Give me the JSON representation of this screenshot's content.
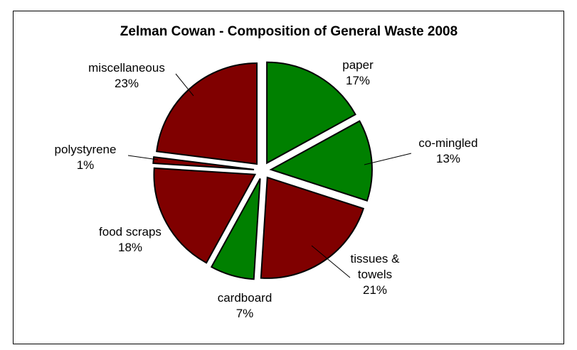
{
  "chart_data": {
    "type": "pie",
    "title": "Zelman Cowan - Composition of General Waste 2008",
    "slices": [
      {
        "label": "paper",
        "value_label": "17%",
        "value": 17,
        "color": "#008000"
      },
      {
        "label": "co-mingled",
        "value_label": "13%",
        "value": 13,
        "color": "#008000"
      },
      {
        "label": "tissues & towels",
        "label_lines": [
          "tissues &",
          "towels"
        ],
        "value_label": "21%",
        "value": 21,
        "color": "#800000"
      },
      {
        "label": "cardboard",
        "value_label": "7%",
        "value": 7,
        "color": "#008000"
      },
      {
        "label": "food scraps",
        "value_label": "18%",
        "value": 18,
        "color": "#800000"
      },
      {
        "label": "polystyrene",
        "value_label": "1%",
        "value": 1,
        "color": "#800000"
      },
      {
        "label": "miscellaneous",
        "value_label": "23%",
        "value": 23,
        "color": "#800000"
      }
    ],
    "exploded": true,
    "legend": "none"
  }
}
